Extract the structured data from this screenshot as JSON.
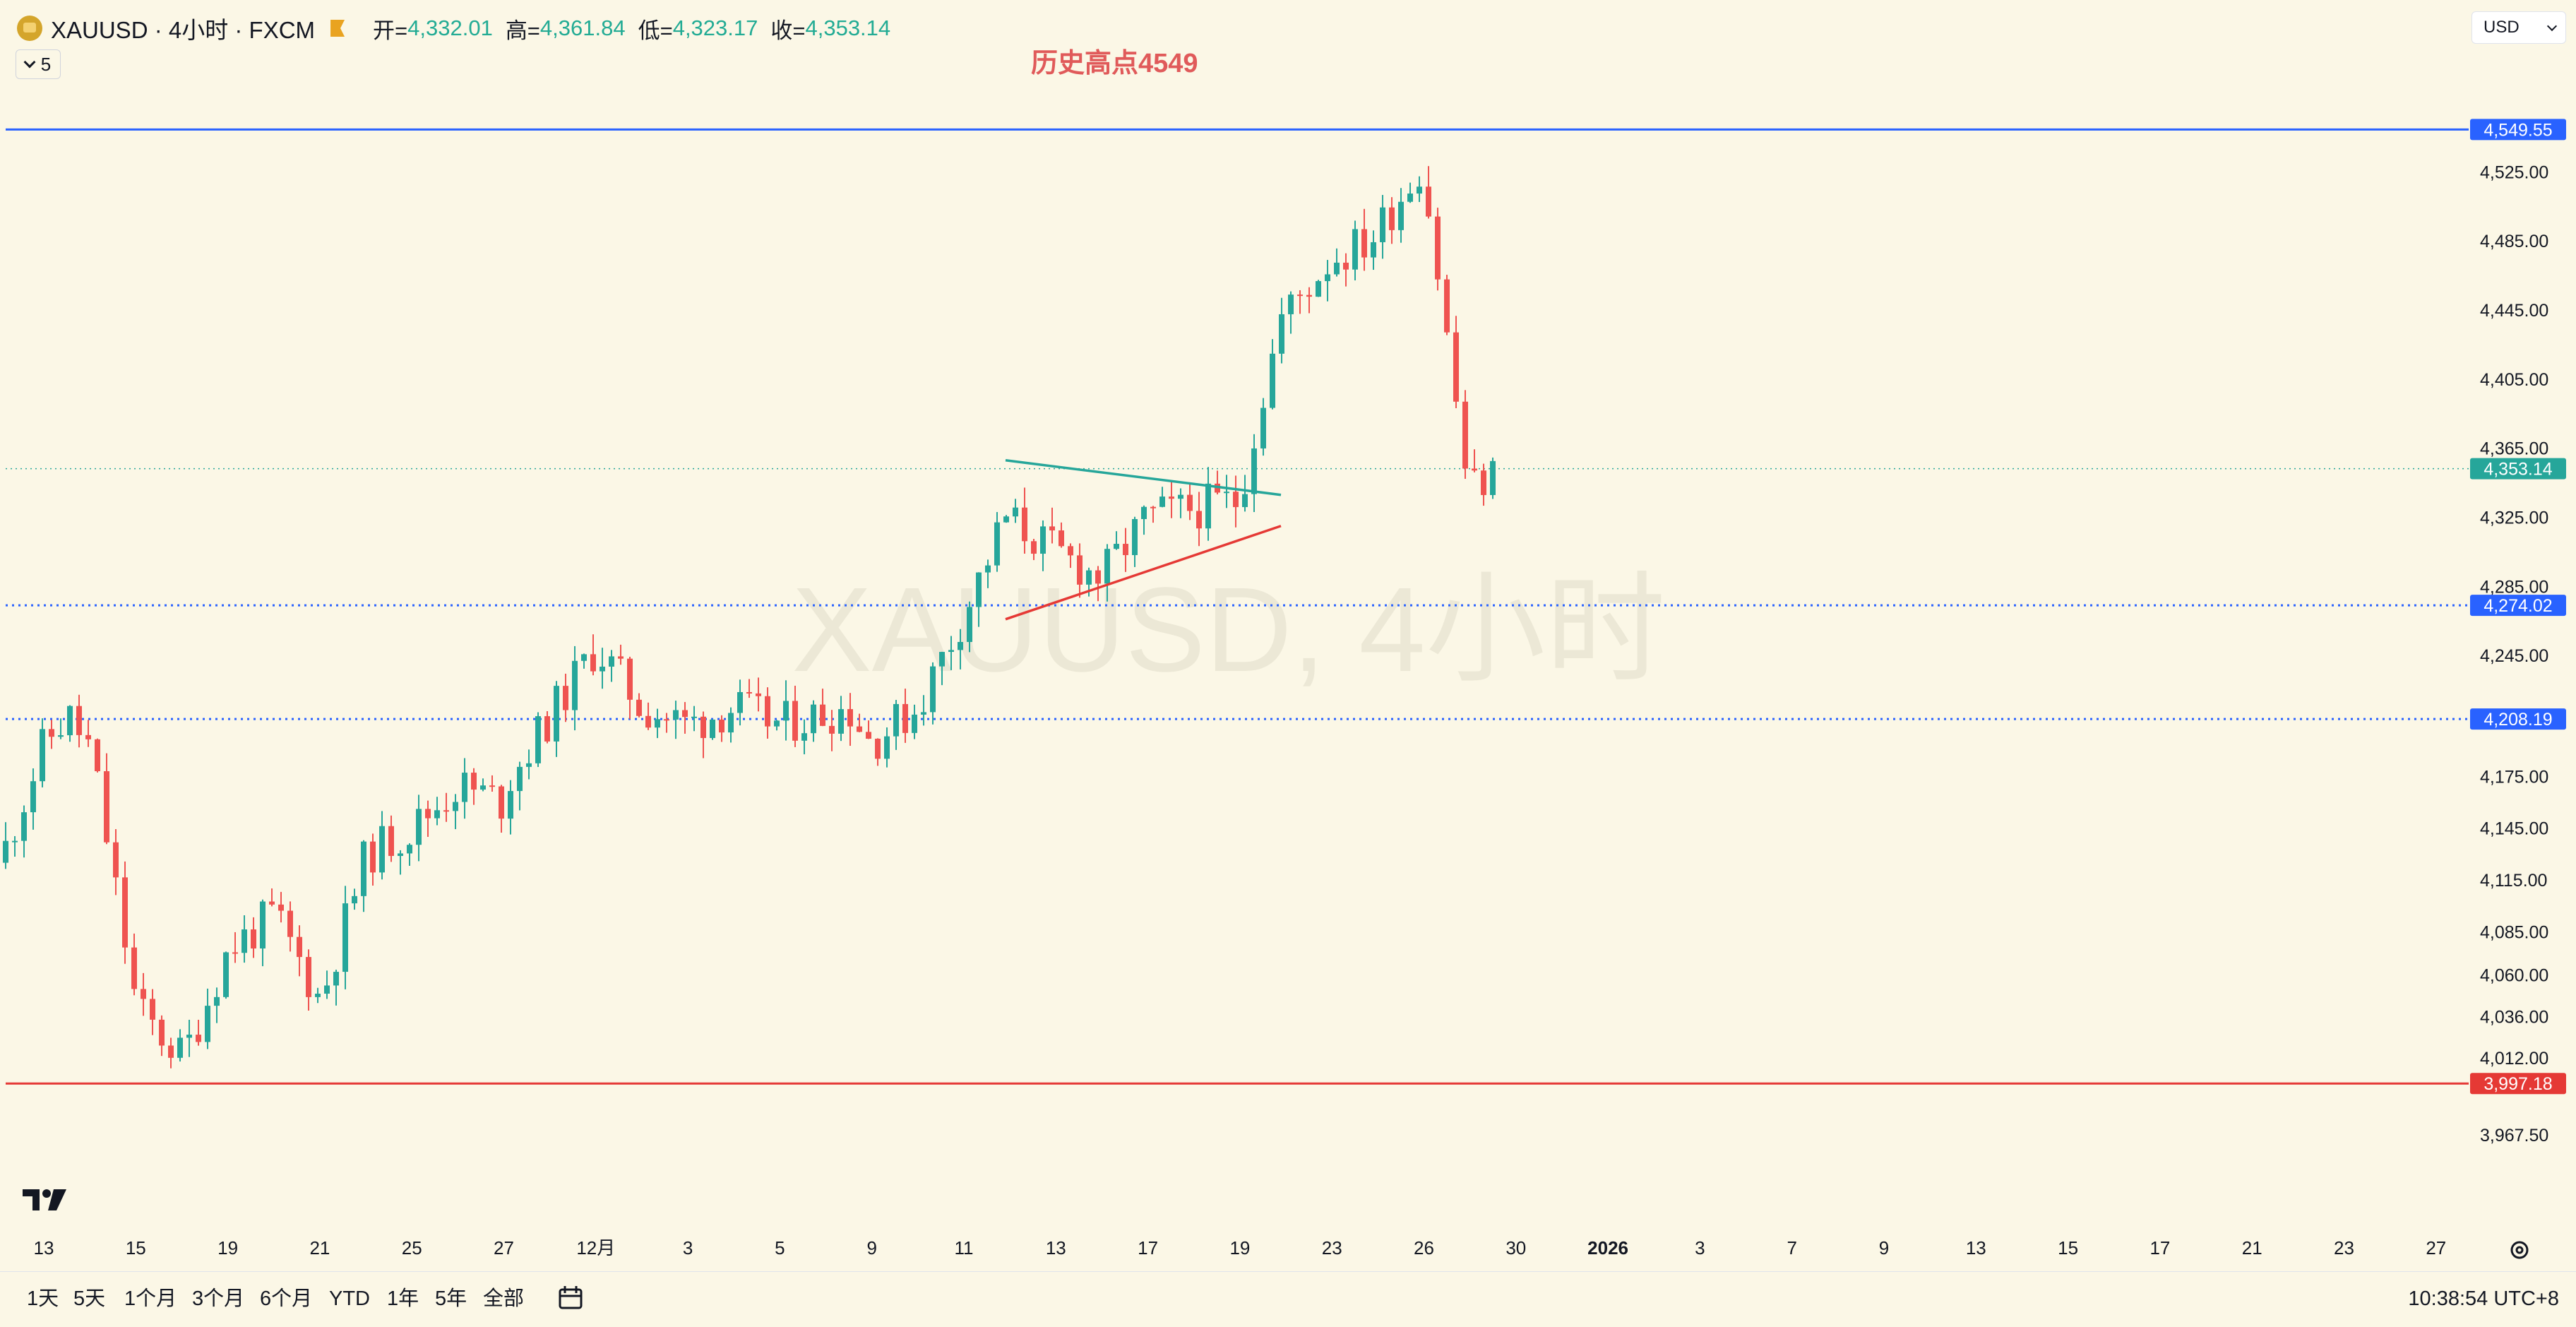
{
  "header": {
    "symbol_title": "XAUUSD · 4小时 · FXCM",
    "open_label": "开=",
    "open_value": "4,332.01",
    "high_label": "高=",
    "high_value": "4,361.84",
    "low_label": "低=",
    "low_value": "4,323.17",
    "close_label": "收=",
    "close_value": "4,353.14",
    "indicator_count": "5",
    "currency": "USD"
  },
  "annotation": {
    "text": "历史高点4549",
    "color": "#e05a5a"
  },
  "watermark": "XAUUSD, 4小时",
  "bottom_bar": {
    "ranges": [
      "1天",
      "5天",
      "1个月",
      "3个月",
      "6个月",
      "YTD",
      "1年",
      "5年",
      "全部"
    ],
    "clock": "10:38:54 UTC+8"
  },
  "icons": [
    "tradingview-logo-icon",
    "chevron-down-icon",
    "calendar-range-icon",
    "settings-gear-icon",
    "gold-symbol-logo-icon",
    "flag-icon"
  ],
  "colors": {
    "up": "#26a69a",
    "down": "#ef5350",
    "blue": "#2962ff",
    "red": "#e53935",
    "background": "#fbf7e6"
  },
  "chart_data": {
    "type": "candlestick",
    "symbol": "XAUUSD",
    "interval": "4小时",
    "ylim": [
      3950,
      4570
    ],
    "y_ticks": [
      "4,525.00",
      "4,485.00",
      "4,445.00",
      "4,405.00",
      "4,365.00",
      "4,325.00",
      "4,285.00",
      "4,245.00",
      "4,175.00",
      "4,145.00",
      "4,115.00",
      "4,085.00",
      "4,060.00",
      "4,036.00",
      "4,012.00",
      "3,967.50"
    ],
    "x_ticks": [
      "13",
      "15",
      "19",
      "21",
      "25",
      "27",
      "12月",
      "3",
      "5",
      "9",
      "11",
      "13",
      "17",
      "19",
      "23",
      "26",
      "30",
      "2026",
      "3",
      "7",
      "9",
      "13",
      "15",
      "17",
      "21",
      "23",
      "27"
    ],
    "horizontal_lines": [
      {
        "price": 4549.55,
        "label": "4,549.55",
        "color": "#2962ff",
        "style": "solid"
      },
      {
        "price": 4274.02,
        "label": "4,274.02",
        "color": "#2962ff",
        "style": "dotted"
      },
      {
        "price": 4208.19,
        "label": "4,208.19",
        "color": "#2962ff",
        "style": "dotted"
      },
      {
        "price": 3997.18,
        "label": "3,997.18",
        "color": "#e53935",
        "style": "solid"
      }
    ],
    "last_price": {
      "price": 4353.14,
      "label": "4,353.14",
      "color": "#26a69a"
    },
    "trendlines": [
      {
        "color": "#26a69a",
        "from": [
          "12-12",
          4358
        ],
        "to": [
          "12-22",
          4338
        ]
      },
      {
        "color": "#e53935",
        "from": [
          "12-12",
          4266
        ],
        "to": [
          "12-22",
          4320
        ]
      }
    ],
    "close_path": [
      [
        "11-12",
        4125
      ],
      [
        "11-13",
        4195
      ],
      [
        "11-14",
        4210
      ],
      [
        "11-15",
        4190
      ],
      [
        "11-17",
        4040
      ],
      [
        "11-18",
        4012
      ],
      [
        "11-19",
        4075
      ],
      [
        "11-20",
        4095
      ],
      [
        "11-21",
        4045
      ],
      [
        "11-24",
        4130
      ],
      [
        "11-25",
        4145
      ],
      [
        "11-26",
        4170
      ],
      [
        "11-27",
        4160
      ],
      [
        "11-28",
        4175
      ],
      [
        "12-01",
        4250
      ],
      [
        "12-02",
        4215
      ],
      [
        "12-03",
        4205
      ],
      [
        "12-04",
        4215
      ],
      [
        "12-05",
        4205
      ],
      [
        "12-08",
        4215
      ],
      [
        "12-09",
        4195
      ],
      [
        "12-10",
        4215
      ],
      [
        "12-11",
        4268
      ],
      [
        "12-12",
        4325
      ],
      [
        "12-15",
        4305
      ],
      [
        "12-16",
        4290
      ],
      [
        "12-17",
        4325
      ],
      [
        "12-18",
        4330
      ],
      [
        "12-19",
        4335
      ],
      [
        "12-22",
        4440
      ],
      [
        "12-23",
        4475
      ],
      [
        "12-24",
        4485
      ],
      [
        "12-26",
        4530
      ],
      [
        "12-29",
        4340
      ],
      [
        "12-30",
        4353
      ]
    ]
  }
}
